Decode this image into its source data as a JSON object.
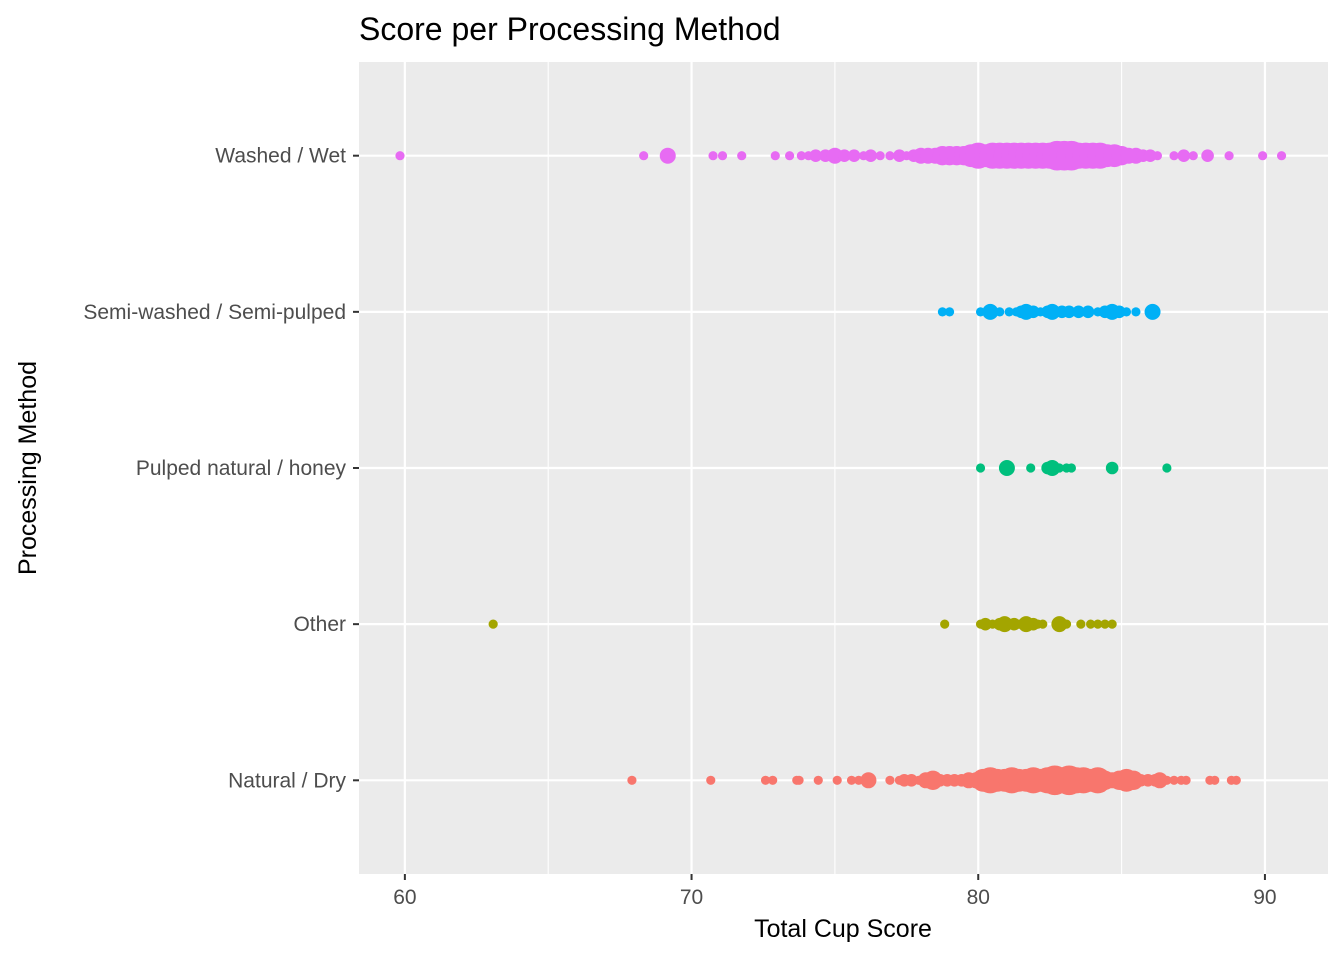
{
  "chart_data": {
    "type": "scatter",
    "title": "Score per Processing Method",
    "xlabel": "Total Cup Score",
    "ylabel": "Processing Method",
    "xlim": [
      58.4,
      92.2
    ],
    "x_ticks": [
      "60",
      "70",
      "80",
      "90"
    ],
    "x_tick_values": [
      60,
      70,
      80,
      90
    ],
    "categories": [
      "Natural / Dry",
      "Other",
      "Pulped natural / honey",
      "Semi-washed / Semi-pulped",
      "Washed / Wet"
    ],
    "grid": true,
    "legend": "none",
    "series": [
      {
        "category": "Natural / Dry",
        "color": "#F8766D",
        "points": [
          {
            "x": 67.92,
            "n": 1
          },
          {
            "x": 70.67,
            "n": 1
          },
          {
            "x": 72.58,
            "n": 1
          },
          {
            "x": 72.83,
            "n": 1
          },
          {
            "x": 73.67,
            "n": 1
          },
          {
            "x": 73.75,
            "n": 1
          },
          {
            "x": 74.42,
            "n": 1
          },
          {
            "x": 75.08,
            "n": 1
          },
          {
            "x": 75.58,
            "n": 1
          },
          {
            "x": 75.83,
            "n": 1
          },
          {
            "x": 76.17,
            "n": 3
          },
          {
            "x": 76.92,
            "n": 1
          },
          {
            "x": 77.25,
            "n": 1
          },
          {
            "x": 77.42,
            "n": 2
          },
          {
            "x": 77.67,
            "n": 2
          },
          {
            "x": 77.92,
            "n": 1
          },
          {
            "x": 78.17,
            "n": 3
          },
          {
            "x": 78.42,
            "n": 4
          },
          {
            "x": 78.67,
            "n": 2
          },
          {
            "x": 78.92,
            "n": 2
          },
          {
            "x": 79.17,
            "n": 2
          },
          {
            "x": 79.42,
            "n": 2
          },
          {
            "x": 79.67,
            "n": 3
          },
          {
            "x": 79.92,
            "n": 3
          },
          {
            "x": 80.17,
            "n": 5
          },
          {
            "x": 80.42,
            "n": 6
          },
          {
            "x": 80.67,
            "n": 5
          },
          {
            "x": 80.92,
            "n": 5
          },
          {
            "x": 81.17,
            "n": 6
          },
          {
            "x": 81.42,
            "n": 5
          },
          {
            "x": 81.67,
            "n": 5
          },
          {
            "x": 81.92,
            "n": 6
          },
          {
            "x": 82.17,
            "n": 5
          },
          {
            "x": 82.42,
            "n": 6
          },
          {
            "x": 82.67,
            "n": 7
          },
          {
            "x": 82.92,
            "n": 6
          },
          {
            "x": 83.17,
            "n": 7
          },
          {
            "x": 83.42,
            "n": 6
          },
          {
            "x": 83.67,
            "n": 6
          },
          {
            "x": 83.92,
            "n": 5
          },
          {
            "x": 84.17,
            "n": 6
          },
          {
            "x": 84.42,
            "n": 4
          },
          {
            "x": 84.67,
            "n": 3
          },
          {
            "x": 84.92,
            "n": 4
          },
          {
            "x": 85.17,
            "n": 5
          },
          {
            "x": 85.42,
            "n": 4
          },
          {
            "x": 85.67,
            "n": 2
          },
          {
            "x": 85.92,
            "n": 2
          },
          {
            "x": 86.17,
            "n": 2
          },
          {
            "x": 86.33,
            "n": 3
          },
          {
            "x": 86.58,
            "n": 1
          },
          {
            "x": 86.83,
            "n": 1
          },
          {
            "x": 87.08,
            "n": 1
          },
          {
            "x": 87.25,
            "n": 1
          },
          {
            "x": 88.08,
            "n": 1
          },
          {
            "x": 88.25,
            "n": 1
          },
          {
            "x": 88.83,
            "n": 1
          },
          {
            "x": 89.0,
            "n": 1
          }
        ]
      },
      {
        "category": "Other",
        "color": "#A3A500",
        "points": [
          {
            "x": 63.08,
            "n": 1
          },
          {
            "x": 78.83,
            "n": 1
          },
          {
            "x": 80.08,
            "n": 1
          },
          {
            "x": 80.25,
            "n": 2
          },
          {
            "x": 80.5,
            "n": 1
          },
          {
            "x": 80.75,
            "n": 2
          },
          {
            "x": 80.92,
            "n": 3
          },
          {
            "x": 81.25,
            "n": 2
          },
          {
            "x": 81.42,
            "n": 1
          },
          {
            "x": 81.67,
            "n": 3
          },
          {
            "x": 81.92,
            "n": 2
          },
          {
            "x": 82.08,
            "n": 1
          },
          {
            "x": 82.25,
            "n": 1
          },
          {
            "x": 82.83,
            "n": 3
          },
          {
            "x": 83.08,
            "n": 1
          },
          {
            "x": 83.58,
            "n": 1
          },
          {
            "x": 83.92,
            "n": 1
          },
          {
            "x": 84.17,
            "n": 1
          },
          {
            "x": 84.42,
            "n": 1
          },
          {
            "x": 84.67,
            "n": 1
          }
        ]
      },
      {
        "category": "Pulped natural / honey",
        "color": "#00BF7D",
        "points": [
          {
            "x": 80.08,
            "n": 1
          },
          {
            "x": 81.0,
            "n": 3
          },
          {
            "x": 81.83,
            "n": 1
          },
          {
            "x": 82.42,
            "n": 2
          },
          {
            "x": 82.58,
            "n": 3
          },
          {
            "x": 82.83,
            "n": 1
          },
          {
            "x": 83.08,
            "n": 1
          },
          {
            "x": 83.25,
            "n": 1
          },
          {
            "x": 84.67,
            "n": 2
          },
          {
            "x": 86.58,
            "n": 1
          }
        ]
      },
      {
        "category": "Semi-washed / Semi-pulped",
        "color": "#00B0F6",
        "points": [
          {
            "x": 78.75,
            "n": 1
          },
          {
            "x": 79.0,
            "n": 1
          },
          {
            "x": 80.08,
            "n": 1
          },
          {
            "x": 80.42,
            "n": 3
          },
          {
            "x": 80.75,
            "n": 1
          },
          {
            "x": 81.08,
            "n": 1
          },
          {
            "x": 81.33,
            "n": 1
          },
          {
            "x": 81.5,
            "n": 2
          },
          {
            "x": 81.67,
            "n": 3
          },
          {
            "x": 81.92,
            "n": 2
          },
          {
            "x": 82.17,
            "n": 1
          },
          {
            "x": 82.42,
            "n": 2
          },
          {
            "x": 82.58,
            "n": 3
          },
          {
            "x": 82.92,
            "n": 2
          },
          {
            "x": 83.17,
            "n": 2
          },
          {
            "x": 83.5,
            "n": 2
          },
          {
            "x": 83.83,
            "n": 2
          },
          {
            "x": 84.17,
            "n": 1
          },
          {
            "x": 84.42,
            "n": 2
          },
          {
            "x": 84.67,
            "n": 3
          },
          {
            "x": 84.92,
            "n": 2
          },
          {
            "x": 85.17,
            "n": 1
          },
          {
            "x": 85.5,
            "n": 1
          },
          {
            "x": 86.08,
            "n": 3
          }
        ]
      },
      {
        "category": "Washed / Wet",
        "color": "#E76BF3",
        "points": [
          {
            "x": 59.83,
            "n": 1
          },
          {
            "x": 68.33,
            "n": 1
          },
          {
            "x": 69.17,
            "n": 3
          },
          {
            "x": 70.75,
            "n": 1
          },
          {
            "x": 71.08,
            "n": 1
          },
          {
            "x": 71.75,
            "n": 1
          },
          {
            "x": 72.92,
            "n": 1
          },
          {
            "x": 73.42,
            "n": 1
          },
          {
            "x": 73.83,
            "n": 1
          },
          {
            "x": 74.08,
            "n": 1
          },
          {
            "x": 74.33,
            "n": 2
          },
          {
            "x": 74.67,
            "n": 2
          },
          {
            "x": 75.0,
            "n": 3
          },
          {
            "x": 75.33,
            "n": 2
          },
          {
            "x": 75.67,
            "n": 2
          },
          {
            "x": 76.0,
            "n": 1
          },
          {
            "x": 76.25,
            "n": 2
          },
          {
            "x": 76.58,
            "n": 1
          },
          {
            "x": 76.92,
            "n": 1
          },
          {
            "x": 77.25,
            "n": 2
          },
          {
            "x": 77.5,
            "n": 1
          },
          {
            "x": 77.75,
            "n": 2
          },
          {
            "x": 78.0,
            "n": 3
          },
          {
            "x": 78.25,
            "n": 3
          },
          {
            "x": 78.5,
            "n": 3
          },
          {
            "x": 78.75,
            "n": 4
          },
          {
            "x": 79.0,
            "n": 4
          },
          {
            "x": 79.25,
            "n": 4
          },
          {
            "x": 79.5,
            "n": 4
          },
          {
            "x": 79.75,
            "n": 5
          },
          {
            "x": 80.0,
            "n": 6
          },
          {
            "x": 80.25,
            "n": 5
          },
          {
            "x": 80.5,
            "n": 6
          },
          {
            "x": 80.75,
            "n": 6
          },
          {
            "x": 81.0,
            "n": 6
          },
          {
            "x": 81.25,
            "n": 6
          },
          {
            "x": 81.5,
            "n": 6
          },
          {
            "x": 81.75,
            "n": 6
          },
          {
            "x": 82.0,
            "n": 6
          },
          {
            "x": 82.25,
            "n": 6
          },
          {
            "x": 82.5,
            "n": 6
          },
          {
            "x": 82.75,
            "n": 7
          },
          {
            "x": 83.0,
            "n": 7
          },
          {
            "x": 83.25,
            "n": 7
          },
          {
            "x": 83.5,
            "n": 6
          },
          {
            "x": 83.75,
            "n": 6
          },
          {
            "x": 84.0,
            "n": 6
          },
          {
            "x": 84.25,
            "n": 6
          },
          {
            "x": 84.5,
            "n": 5
          },
          {
            "x": 84.75,
            "n": 5
          },
          {
            "x": 85.0,
            "n": 4
          },
          {
            "x": 85.25,
            "n": 3
          },
          {
            "x": 85.5,
            "n": 3
          },
          {
            "x": 85.75,
            "n": 2
          },
          {
            "x": 86.0,
            "n": 2
          },
          {
            "x": 86.25,
            "n": 1
          },
          {
            "x": 86.83,
            "n": 1
          },
          {
            "x": 87.17,
            "n": 2
          },
          {
            "x": 87.5,
            "n": 1
          },
          {
            "x": 88.0,
            "n": 2
          },
          {
            "x": 88.75,
            "n": 1
          },
          {
            "x": 89.92,
            "n": 1
          },
          {
            "x": 90.58,
            "n": 1
          }
        ]
      }
    ]
  }
}
